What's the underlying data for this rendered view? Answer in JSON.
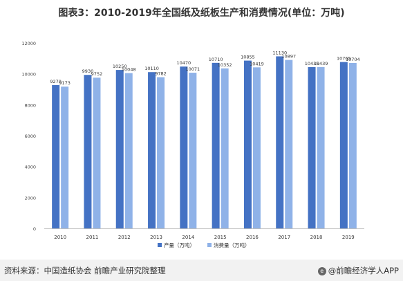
{
  "title": "图表3：2010-2019年全国纸及纸板生产和消费情况(单位：万吨)",
  "chart_data": {
    "type": "bar",
    "categories": [
      "2010",
      "2011",
      "2012",
      "2013",
      "2014",
      "2015",
      "2016",
      "2017",
      "2018",
      "2019"
    ],
    "series": [
      {
        "name": "产量（万吨）",
        "values": [
          9270,
          9930,
          10250,
          10110,
          10470,
          10710,
          10855,
          11130,
          10435,
          10765
        ],
        "labels": [
          "9270",
          "9930",
          "10250",
          "10110",
          "10470",
          "10710",
          "10855",
          "11130",
          "10435",
          "10765"
        ]
      },
      {
        "name": "消费量（万吨）",
        "values": [
          9173,
          9752,
          10048,
          9782,
          10071,
          10352,
          10419,
          10897,
          10439,
          10704
        ],
        "labels": [
          "9173",
          "9752",
          "10048",
          "9782",
          "10071",
          "10352",
          "10419",
          "10897",
          "10439",
          "10704"
        ]
      }
    ],
    "yticks": [
      "0",
      "2000",
      "4000",
      "6000",
      "8000",
      "10000",
      "12000"
    ],
    "ylim": [
      0,
      12000
    ],
    "legend_position": "bottom",
    "colors": [
      "#4472c4",
      "#8fb2e8"
    ],
    "grid": false
  },
  "footer": {
    "source": "资料来源：中国造纸协会 前瞻产业研究院整理",
    "brand": "@前瞻经济学人APP"
  }
}
